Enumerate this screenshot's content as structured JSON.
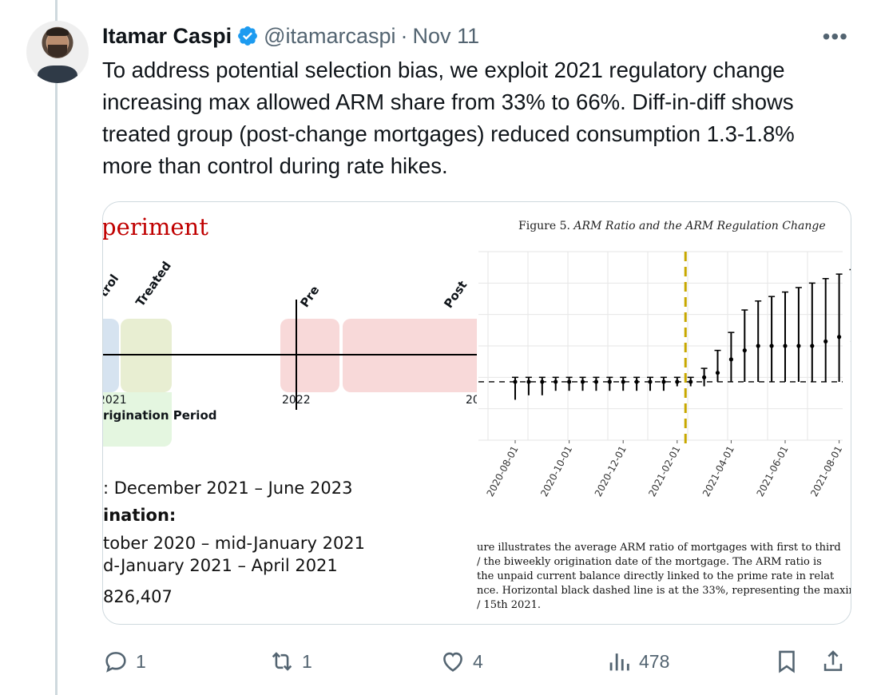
{
  "author": {
    "name": "Itamar Caspi",
    "handle": "@itamarcaspi",
    "separator": "·",
    "date": "Nov 11"
  },
  "tweet": {
    "text": "To address potential selection bias, we exploit 2021 regulatory change increasing max allowed ARM share from 33% to 66%. Diff-in-diff shows treated group (post-change mortgages) reduced consumption 1.3-1.8% more than control during rate hikes."
  },
  "slide": {
    "title": "periment",
    "label_control": "trol",
    "label_treated": "Treated",
    "label_pre": "Pre",
    "label_post": "Post",
    "tick_2021": "2021",
    "tick_2022": "2022",
    "tick_20": "20",
    "origination": "rigination Period",
    "line1": ": December 2021 – June 2023",
    "line2": "ination:",
    "line3": "tober 2020 – mid-January 2021",
    "line4": "d-January 2021 – April 2021",
    "line5": "826,407"
  },
  "figure": {
    "title_prefix": "Figure 5.",
    "title_italic": "ARM Ratio and the ARM Regulation Change",
    "caption": [
      "ure illustrates the average ARM ratio of mortgages with first to third",
      "/ the biweekly origination date of the mortgage.  The ARM ratio is",
      " the unpaid current balance directly linked to the prime rate in relat",
      "nce. Horizontal black dashed line is at the 33%, representing the maxim",
      "/ 15th 2021."
    ]
  },
  "chart_data": {
    "type": "scatter",
    "title": "ARM Ratio and the ARM Regulation Change",
    "x_tick_labels": [
      "2020-08-01",
      "2020-10-01",
      "2020-12-01",
      "2021-02-01",
      "2021-04-01",
      "2021-06-01",
      "2021-08-01"
    ],
    "reference_line_y": 0.33,
    "regulation_change_date": "2021-01-15",
    "series": [
      {
        "name": "ARM ratio",
        "points": [
          {
            "x": 0,
            "y": 0.33,
            "low": 0.29,
            "high": 0.34
          },
          {
            "x": 1,
            "y": 0.33,
            "low": 0.3,
            "high": 0.34
          },
          {
            "x": 2,
            "y": 0.33,
            "low": 0.3,
            "high": 0.34
          },
          {
            "x": 3,
            "y": 0.33,
            "low": 0.31,
            "high": 0.34
          },
          {
            "x": 4,
            "y": 0.33,
            "low": 0.31,
            "high": 0.34
          },
          {
            "x": 5,
            "y": 0.33,
            "low": 0.31,
            "high": 0.34
          },
          {
            "x": 6,
            "y": 0.33,
            "low": 0.31,
            "high": 0.34
          },
          {
            "x": 7,
            "y": 0.33,
            "low": 0.31,
            "high": 0.34
          },
          {
            "x": 8,
            "y": 0.33,
            "low": 0.31,
            "high": 0.34
          },
          {
            "x": 9,
            "y": 0.33,
            "low": 0.31,
            "high": 0.34
          },
          {
            "x": 10,
            "y": 0.33,
            "low": 0.31,
            "high": 0.34
          },
          {
            "x": 11,
            "y": 0.33,
            "low": 0.31,
            "high": 0.34
          },
          {
            "x": 12,
            "y": 0.33,
            "low": 0.32,
            "high": 0.34
          },
          {
            "x": 13,
            "y": 0.33,
            "low": 0.32,
            "high": 0.34
          },
          {
            "x": 14,
            "y": 0.34,
            "low": 0.32,
            "high": 0.36
          },
          {
            "x": 15,
            "y": 0.35,
            "low": 0.33,
            "high": 0.4
          },
          {
            "x": 16,
            "y": 0.38,
            "low": 0.33,
            "high": 0.44
          },
          {
            "x": 17,
            "y": 0.4,
            "low": 0.33,
            "high": 0.49
          },
          {
            "x": 18,
            "y": 0.41,
            "low": 0.33,
            "high": 0.51
          },
          {
            "x": 19,
            "y": 0.41,
            "low": 0.33,
            "high": 0.52
          },
          {
            "x": 20,
            "y": 0.41,
            "low": 0.33,
            "high": 0.53
          },
          {
            "x": 21,
            "y": 0.41,
            "low": 0.33,
            "high": 0.54
          },
          {
            "x": 22,
            "y": 0.41,
            "low": 0.33,
            "high": 0.55
          },
          {
            "x": 23,
            "y": 0.42,
            "low": 0.33,
            "high": 0.56
          },
          {
            "x": 24,
            "y": 0.43,
            "low": 0.33,
            "high": 0.57
          },
          {
            "x": 25,
            "y": 0.42,
            "low": 0.33,
            "high": 0.58
          },
          {
            "x": 26,
            "y": 0.42,
            "low": 0.33,
            "high": 0.57
          },
          {
            "x": 27,
            "y": 0.42,
            "low": 0.33,
            "high": 0.56
          }
        ]
      }
    ],
    "ylim": [
      0.2,
      0.62
    ]
  },
  "actions": {
    "reply_count": "1",
    "retweet_count": "1",
    "like_count": "4",
    "views_count": "478"
  },
  "colors": {
    "text_primary": "#0f1419",
    "text_secondary": "#536471",
    "verified": "#1d9bf0",
    "slide_red": "#c00000",
    "dashed_vertical": "#c8a800"
  }
}
